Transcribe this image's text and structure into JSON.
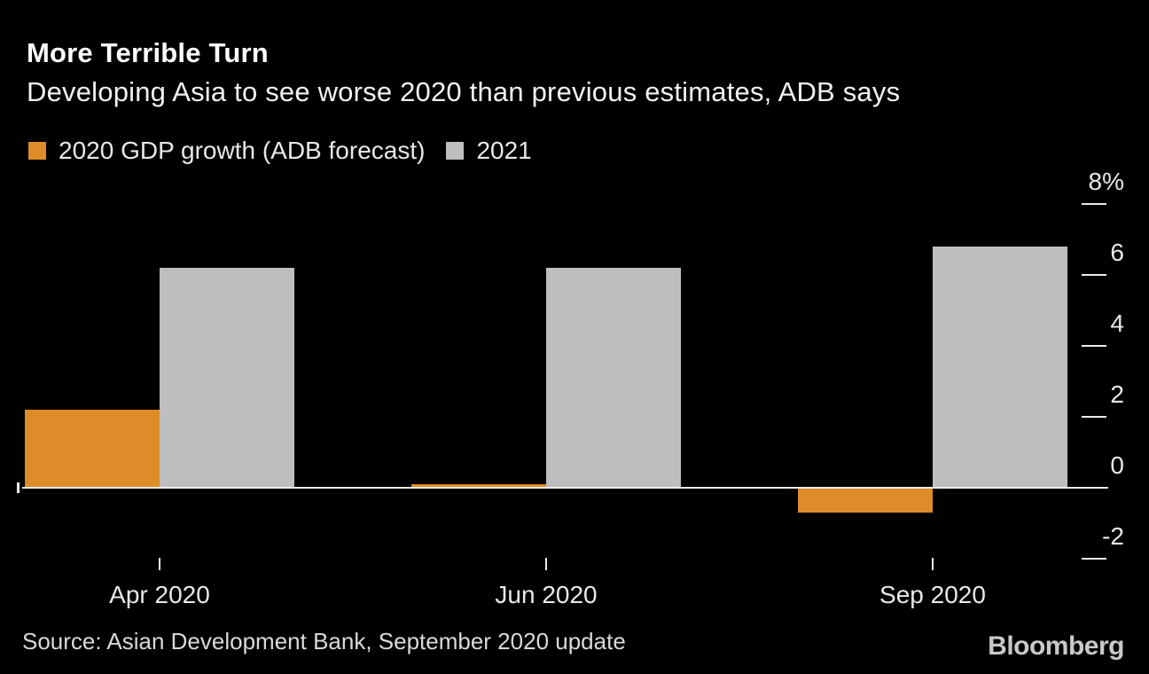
{
  "chart_data": {
    "type": "bar",
    "title": "More Terrible Turn",
    "subtitle": "Developing Asia to see worse 2020 than previous estimates, ADB says",
    "categories": [
      "Apr 2020",
      "Jun 2020",
      "Sep 2020"
    ],
    "series": [
      {
        "name": "2020 GDP growth (ADB forecast)",
        "color": "#DD8C29",
        "values": [
          2.2,
          0.1,
          -0.7
        ]
      },
      {
        "name": "2021",
        "color": "#BFBEBE",
        "values": [
          6.2,
          6.2,
          6.8
        ]
      }
    ],
    "y_ticks": [
      {
        "value": 8,
        "label": "8%"
      },
      {
        "value": 6,
        "label": "6"
      },
      {
        "value": 4,
        "label": "4"
      },
      {
        "value": 2,
        "label": "2"
      },
      {
        "value": 0,
        "label": "0"
      },
      {
        "value": -2,
        "label": "-2"
      }
    ],
    "ylim": [
      -2.6,
      8.6
    ],
    "grid": false,
    "legend_position": "top-left",
    "baseline_value": 0
  },
  "source": "Source: Asian Development Bank, September 2020 update",
  "brand": "Bloomberg",
  "colors": {
    "background": "#000000",
    "title": "#FFFFFF",
    "subtitle": "#F2F2F2",
    "axis_text": "#E8E8E8",
    "axis_line": "#EDEBE7",
    "source_text": "#D9D9D9",
    "brand_text": "#C9C9C9"
  }
}
